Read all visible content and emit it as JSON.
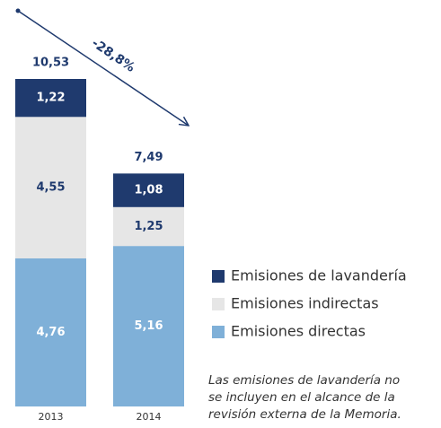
{
  "chart_data": {
    "type": "stacked_bar",
    "categories": [
      "2013",
      "2014"
    ],
    "series": [
      {
        "name": "Emisiones directas",
        "color": "#7fb0d8",
        "label_color": "#ffffff",
        "values": [
          4.76,
          5.16
        ],
        "value_labels": [
          "4,76",
          "5,16"
        ]
      },
      {
        "name": "Emisiones indirectas",
        "color": "#e6e6e6",
        "label_color": "#1f3a6e",
        "values": [
          4.55,
          1.25
        ],
        "value_labels": [
          "4,55",
          "1,25"
        ]
      },
      {
        "name": "Emisiones de lavandería",
        "color": "#1f3a6e",
        "label_color": "#ffffff",
        "values": [
          1.22,
          1.08
        ],
        "value_labels": [
          "1,22",
          "1,08"
        ]
      }
    ],
    "totals": [
      10.53,
      7.49
    ],
    "total_labels": [
      "10,53",
      "7,49"
    ],
    "annotation": "-28,8%",
    "note": [
      "Las emisiones de lavandería no",
      "se incluyen en el alcance de la",
      "revisión externa de la Memoria."
    ]
  }
}
